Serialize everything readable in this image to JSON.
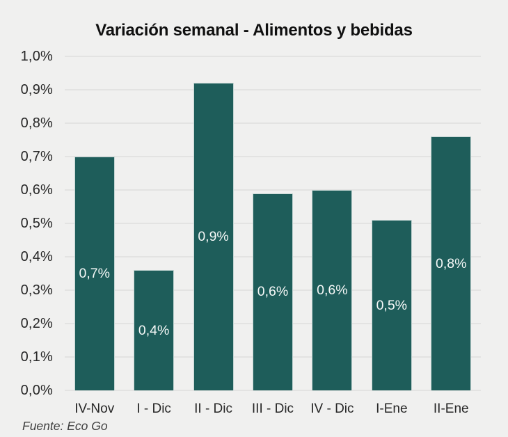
{
  "header": {
    "title": "Variación semanal - Alimentos y bebidas"
  },
  "footer": {
    "source": "Fuente: Eco Go"
  },
  "colors": {
    "background": "#f0f0ef",
    "title_text": "#101010",
    "axis_text": "#262626",
    "gridline": "#e3e3e2",
    "bar_fill": "#1e5d5a",
    "bar_border": "#c4d5d3",
    "bar_label_text": "#f5f8f7",
    "source_text": "#3f3f3f"
  },
  "chart_data": {
    "type": "bar",
    "title": "Variación semanal - Alimentos y bebidas",
    "categories": [
      "IV-Nov",
      "I - Dic",
      "II - Dic",
      "III - Dic",
      "IV - Dic",
      "I-Ene",
      "II-Ene"
    ],
    "values": [
      0.7,
      0.36,
      0.92,
      0.59,
      0.6,
      0.51,
      0.76
    ],
    "bar_labels": [
      "0,7%",
      "0,4%",
      "0,9%",
      "0,6%",
      "0,6%",
      "0,5%",
      "0,8%"
    ],
    "xlabel": "",
    "ylabel": "",
    "ylim": [
      0,
      1.0
    ],
    "yticks": [
      {
        "value": 1.0,
        "label": "1,0%"
      },
      {
        "value": 0.9,
        "label": "0,9%"
      },
      {
        "value": 0.8,
        "label": "0,8%"
      },
      {
        "value": 0.7,
        "label": "0,7%"
      },
      {
        "value": 0.6,
        "label": "0,6%"
      },
      {
        "value": 0.5,
        "label": "0,5%"
      },
      {
        "value": 0.4,
        "label": "0,4%"
      },
      {
        "value": 0.3,
        "label": "0,3%"
      },
      {
        "value": 0.2,
        "label": "0,2%"
      },
      {
        "value": 0.1,
        "label": "0,1%"
      },
      {
        "value": 0.0,
        "label": "0,0%"
      }
    ],
    "grid": "horizontal",
    "legend": "none",
    "value_labels_position": "inside-center",
    "source": "Fuente: Eco Go"
  }
}
